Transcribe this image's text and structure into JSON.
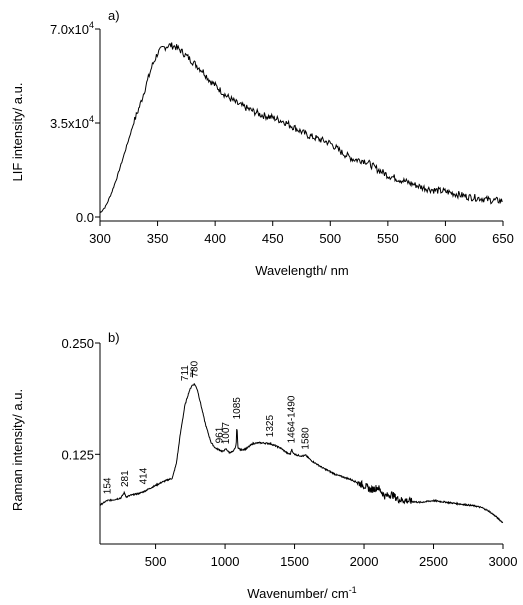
{
  "chart_data": [
    {
      "type": "line",
      "panel_label": "a)",
      "xlabel": "Wavelength/ nm",
      "ylabel": "LIF intensity/ a.u.",
      "xlim": [
        300,
        650
      ],
      "ylim": [
        0,
        70000
      ],
      "x_ticks": [
        300,
        350,
        400,
        450,
        500,
        550,
        600,
        650
      ],
      "y_ticks": [
        {
          "value": 0,
          "mantissa": "0.0",
          "exp": ""
        },
        {
          "value": 35000,
          "mantissa": "3.5x10",
          "exp": "4"
        },
        {
          "value": 70000,
          "mantissa": "7.0x10",
          "exp": "4"
        }
      ],
      "x": [
        300,
        305,
        310,
        315,
        320,
        325,
        330,
        335,
        340,
        345,
        350,
        355,
        360,
        365,
        370,
        375,
        380,
        385,
        390,
        395,
        400,
        410,
        420,
        430,
        440,
        450,
        460,
        470,
        480,
        490,
        500,
        510,
        520,
        530,
        540,
        550,
        560,
        570,
        580,
        590,
        600,
        610,
        620,
        630,
        640,
        650
      ],
      "values": [
        1500,
        4000,
        9000,
        15000,
        22000,
        29000,
        36000,
        42000,
        49000,
        56000,
        61000,
        63000,
        64000,
        63500,
        62000,
        60000,
        58000,
        56000,
        54000,
        51000,
        49000,
        45000,
        42000,
        40000,
        38000,
        37000,
        35500,
        33000,
        30500,
        29000,
        27500,
        24000,
        21500,
        21000,
        18000,
        15500,
        14000,
        12500,
        11000,
        10000,
        9500,
        8500,
        7500,
        7000,
        6200,
        6000
      ]
    },
    {
      "type": "line",
      "panel_label": "b)",
      "xlabel": "Wavenumber/ cm",
      "xlabel_sup": "-1",
      "ylabel": "Raman intensity/ a.u.",
      "xlim": [
        100,
        3000
      ],
      "ylim": [
        0.04,
        0.25
      ],
      "x_ticks": [
        500,
        1000,
        1500,
        2000,
        2500,
        3000
      ],
      "y_ticks": [
        {
          "value": 0.125,
          "label": "0.125"
        },
        {
          "value": 0.25,
          "label": "0.250"
        }
      ],
      "x": [
        100,
        150,
        200,
        250,
        275,
        290,
        320,
        380,
        414,
        450,
        500,
        550,
        600,
        620,
        650,
        680,
        711,
        740,
        760,
        780,
        800,
        830,
        860,
        900,
        930,
        961,
        980,
        1007,
        1030,
        1060,
        1080,
        1085,
        1092,
        1110,
        1150,
        1200,
        1250,
        1325,
        1400,
        1450,
        1470,
        1480,
        1490,
        1520,
        1560,
        1580,
        1620,
        1700,
        1800,
        1900,
        2000,
        2050,
        2100,
        2150,
        2200,
        2250,
        2300,
        2400,
        2500,
        2600,
        2700,
        2800,
        2850,
        2900,
        2950,
        3000
      ],
      "values": [
        0.068,
        0.073,
        0.074,
        0.076,
        0.082,
        0.077,
        0.079,
        0.081,
        0.083,
        0.086,
        0.09,
        0.094,
        0.097,
        0.098,
        0.115,
        0.15,
        0.18,
        0.195,
        0.202,
        0.204,
        0.198,
        0.178,
        0.158,
        0.138,
        0.132,
        0.13,
        0.128,
        0.131,
        0.127,
        0.128,
        0.135,
        0.158,
        0.133,
        0.13,
        0.131,
        0.137,
        0.138,
        0.137,
        0.132,
        0.126,
        0.125,
        0.131,
        0.126,
        0.124,
        0.123,
        0.124,
        0.118,
        0.11,
        0.102,
        0.097,
        0.09,
        0.085,
        0.088,
        0.078,
        0.08,
        0.074,
        0.073,
        0.071,
        0.073,
        0.071,
        0.069,
        0.067,
        0.065,
        0.061,
        0.055,
        0.048
      ],
      "annotations": [
        {
          "label": "154",
          "x": 154,
          "y": 0.078
        },
        {
          "label": "281",
          "x": 281,
          "y": 0.086
        },
        {
          "label": "414",
          "x": 414,
          "y": 0.089
        },
        {
          "label": "711",
          "x": 711,
          "y": 0.205
        },
        {
          "label": "780",
          "x": 780,
          "y": 0.209
        },
        {
          "label": "961",
          "x": 961,
          "y": 0.135
        },
        {
          "label": "1007",
          "x": 1007,
          "y": 0.134
        },
        {
          "label": "1085",
          "x": 1085,
          "y": 0.162
        },
        {
          "label": "1325",
          "x": 1325,
          "y": 0.142
        },
        {
          "label": "1464-1490",
          "x": 1477,
          "y": 0.135
        },
        {
          "label": "1580",
          "x": 1580,
          "y": 0.128
        }
      ]
    }
  ]
}
